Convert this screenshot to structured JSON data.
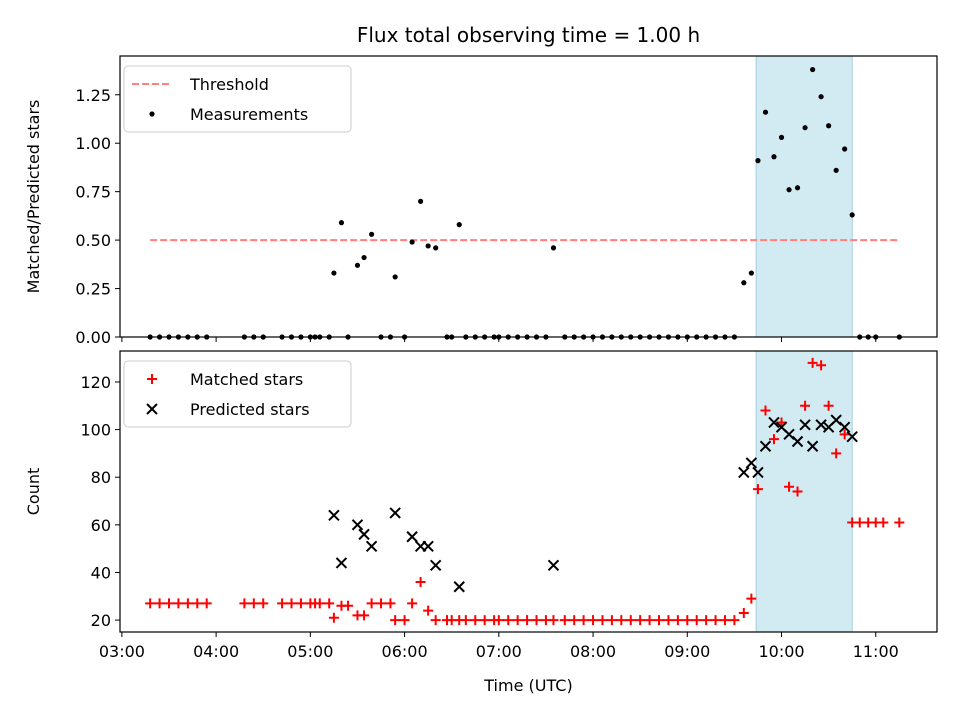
{
  "chart_data": [
    {
      "type": "scatter",
      "title": "Flux total observing time = 1.00 h",
      "ylabel": "Matched/Predicted stars",
      "ylim": [
        0,
        1.45
      ],
      "yticks": [
        0.0,
        0.25,
        0.5,
        0.75,
        1.0,
        1.25
      ],
      "ytick_labels": [
        "0.00",
        "0.25",
        "0.50",
        "0.75",
        "1.00",
        "1.25"
      ],
      "xlim_hours": [
        2.98,
        11.65
      ],
      "highlight_span_hours": [
        9.73,
        10.75
      ],
      "highlight_color": "#add8e6",
      "legend_position": "upper left",
      "series": [
        {
          "name": "Threshold",
          "style": "dashed-line",
          "color": "#ff7f7f",
          "x_hours": [
            3.3,
            11.25
          ],
          "values": [
            0.5,
            0.5
          ]
        },
        {
          "name": "Measurements",
          "style": "dot",
          "color": "#000000",
          "points": [
            [
              3.3,
              0
            ],
            [
              3.4,
              0
            ],
            [
              3.5,
              0
            ],
            [
              3.6,
              0
            ],
            [
              3.7,
              0
            ],
            [
              3.8,
              0
            ],
            [
              3.9,
              0
            ],
            [
              4.3,
              0
            ],
            [
              4.4,
              0
            ],
            [
              4.5,
              0
            ],
            [
              4.7,
              0
            ],
            [
              4.8,
              0
            ],
            [
              4.9,
              0
            ],
            [
              5.0,
              0
            ],
            [
              5.05,
              0
            ],
            [
              5.1,
              0
            ],
            [
              5.2,
              0
            ],
            [
              5.25,
              0.33
            ],
            [
              5.33,
              0.59
            ],
            [
              5.4,
              0
            ],
            [
              5.5,
              0.37
            ],
            [
              5.57,
              0.41
            ],
            [
              5.65,
              0.53
            ],
            [
              5.75,
              0
            ],
            [
              5.85,
              0
            ],
            [
              5.9,
              0.31
            ],
            [
              6.0,
              0
            ],
            [
              6.08,
              0.49
            ],
            [
              6.17,
              0.7
            ],
            [
              6.25,
              0.47
            ],
            [
              6.33,
              0.46
            ],
            [
              6.45,
              0
            ],
            [
              6.5,
              0
            ],
            [
              6.58,
              0.58
            ],
            [
              6.65,
              0
            ],
            [
              6.75,
              0
            ],
            [
              6.85,
              0
            ],
            [
              6.95,
              0
            ],
            [
              7.0,
              0
            ],
            [
              7.1,
              0
            ],
            [
              7.2,
              0
            ],
            [
              7.3,
              0
            ],
            [
              7.4,
              0
            ],
            [
              7.5,
              0
            ],
            [
              7.58,
              0.46
            ],
            [
              7.7,
              0
            ],
            [
              7.8,
              0
            ],
            [
              7.9,
              0
            ],
            [
              8.0,
              0
            ],
            [
              8.1,
              0
            ],
            [
              8.2,
              0
            ],
            [
              8.3,
              0
            ],
            [
              8.4,
              0
            ],
            [
              8.5,
              0
            ],
            [
              8.6,
              0
            ],
            [
              8.7,
              0
            ],
            [
              8.8,
              0
            ],
            [
              8.9,
              0
            ],
            [
              9.0,
              0
            ],
            [
              9.1,
              0
            ],
            [
              9.2,
              0
            ],
            [
              9.3,
              0
            ],
            [
              9.4,
              0
            ],
            [
              9.5,
              0
            ],
            [
              9.6,
              0.28
            ],
            [
              9.68,
              0.33
            ],
            [
              9.75,
              0.91
            ],
            [
              9.83,
              1.16
            ],
            [
              9.92,
              0.93
            ],
            [
              10.0,
              1.03
            ],
            [
              10.08,
              0.76
            ],
            [
              10.17,
              0.77
            ],
            [
              10.25,
              1.08
            ],
            [
              10.33,
              1.38
            ],
            [
              10.42,
              1.24
            ],
            [
              10.5,
              1.09
            ],
            [
              10.58,
              0.86
            ],
            [
              10.67,
              0.97
            ],
            [
              10.75,
              0.63
            ],
            [
              10.83,
              0
            ],
            [
              10.92,
              0
            ],
            [
              11.0,
              0
            ],
            [
              11.25,
              0
            ]
          ]
        }
      ]
    },
    {
      "type": "scatter",
      "xlabel": "Time (UTC)",
      "ylabel": "Count",
      "ylim": [
        15,
        133
      ],
      "yticks": [
        20,
        40,
        60,
        80,
        100,
        120
      ],
      "ytick_labels": [
        "20",
        "40",
        "60",
        "80",
        "100",
        "120"
      ],
      "xlim_hours": [
        2.98,
        11.65
      ],
      "xticks_hours": [
        3,
        4,
        5,
        6,
        7,
        8,
        9,
        10,
        11
      ],
      "xtick_labels": [
        "03:00",
        "04:00",
        "05:00",
        "06:00",
        "07:00",
        "08:00",
        "09:00",
        "10:00",
        "11:00"
      ],
      "highlight_span_hours": [
        9.73,
        10.75
      ],
      "highlight_color": "#add8e6",
      "legend_position": "upper left",
      "series": [
        {
          "name": "Matched stars",
          "style": "plus",
          "color": "#ff0000",
          "points": [
            [
              3.3,
              27
            ],
            [
              3.4,
              27
            ],
            [
              3.5,
              27
            ],
            [
              3.6,
              27
            ],
            [
              3.7,
              27
            ],
            [
              3.8,
              27
            ],
            [
              3.9,
              27
            ],
            [
              4.3,
              27
            ],
            [
              4.4,
              27
            ],
            [
              4.5,
              27
            ],
            [
              4.7,
              27
            ],
            [
              4.8,
              27
            ],
            [
              4.9,
              27
            ],
            [
              5.0,
              27
            ],
            [
              5.05,
              27
            ],
            [
              5.1,
              27
            ],
            [
              5.2,
              27
            ],
            [
              5.25,
              21
            ],
            [
              5.33,
              26
            ],
            [
              5.4,
              26
            ],
            [
              5.5,
              22
            ],
            [
              5.57,
              22
            ],
            [
              5.65,
              27
            ],
            [
              5.75,
              27
            ],
            [
              5.85,
              27
            ],
            [
              5.9,
              20
            ],
            [
              6.0,
              20
            ],
            [
              6.08,
              27
            ],
            [
              6.17,
              36
            ],
            [
              6.25,
              24
            ],
            [
              6.33,
              20
            ],
            [
              6.45,
              20
            ],
            [
              6.5,
              20
            ],
            [
              6.58,
              20
            ],
            [
              6.65,
              20
            ],
            [
              6.75,
              20
            ],
            [
              6.85,
              20
            ],
            [
              6.95,
              20
            ],
            [
              7.0,
              20
            ],
            [
              7.1,
              20
            ],
            [
              7.2,
              20
            ],
            [
              7.3,
              20
            ],
            [
              7.4,
              20
            ],
            [
              7.5,
              20
            ],
            [
              7.58,
              20
            ],
            [
              7.7,
              20
            ],
            [
              7.8,
              20
            ],
            [
              7.9,
              20
            ],
            [
              8.0,
              20
            ],
            [
              8.1,
              20
            ],
            [
              8.2,
              20
            ],
            [
              8.3,
              20
            ],
            [
              8.4,
              20
            ],
            [
              8.5,
              20
            ],
            [
              8.6,
              20
            ],
            [
              8.7,
              20
            ],
            [
              8.8,
              20
            ],
            [
              8.9,
              20
            ],
            [
              9.0,
              20
            ],
            [
              9.1,
              20
            ],
            [
              9.2,
              20
            ],
            [
              9.3,
              20
            ],
            [
              9.4,
              20
            ],
            [
              9.5,
              20
            ],
            [
              9.6,
              23
            ],
            [
              9.68,
              29
            ],
            [
              9.75,
              75
            ],
            [
              9.83,
              108
            ],
            [
              9.92,
              96
            ],
            [
              10.0,
              103
            ],
            [
              10.08,
              76
            ],
            [
              10.17,
              74
            ],
            [
              10.25,
              110
            ],
            [
              10.33,
              128
            ],
            [
              10.42,
              127
            ],
            [
              10.5,
              110
            ],
            [
              10.58,
              90
            ],
            [
              10.67,
              98
            ],
            [
              10.75,
              61
            ],
            [
              10.83,
              61
            ],
            [
              10.92,
              61
            ],
            [
              11.0,
              61
            ],
            [
              11.08,
              61
            ],
            [
              11.25,
              61
            ]
          ]
        },
        {
          "name": "Predicted stars",
          "style": "x",
          "color": "#000000",
          "points": [
            [
              5.25,
              64
            ],
            [
              5.33,
              44
            ],
            [
              5.5,
              60
            ],
            [
              5.57,
              56
            ],
            [
              5.65,
              51
            ],
            [
              5.9,
              65
            ],
            [
              6.08,
              55
            ],
            [
              6.17,
              51
            ],
            [
              6.25,
              51
            ],
            [
              6.33,
              43
            ],
            [
              6.58,
              34
            ],
            [
              7.58,
              43
            ],
            [
              9.6,
              82
            ],
            [
              9.68,
              86
            ],
            [
              9.75,
              82
            ],
            [
              9.83,
              93
            ],
            [
              9.92,
              103
            ],
            [
              10.0,
              101
            ],
            [
              10.08,
              98
            ],
            [
              10.17,
              95
            ],
            [
              10.25,
              102
            ],
            [
              10.33,
              93
            ],
            [
              10.42,
              102
            ],
            [
              10.5,
              101
            ],
            [
              10.58,
              104
            ],
            [
              10.67,
              101
            ],
            [
              10.75,
              97
            ]
          ]
        }
      ]
    }
  ]
}
